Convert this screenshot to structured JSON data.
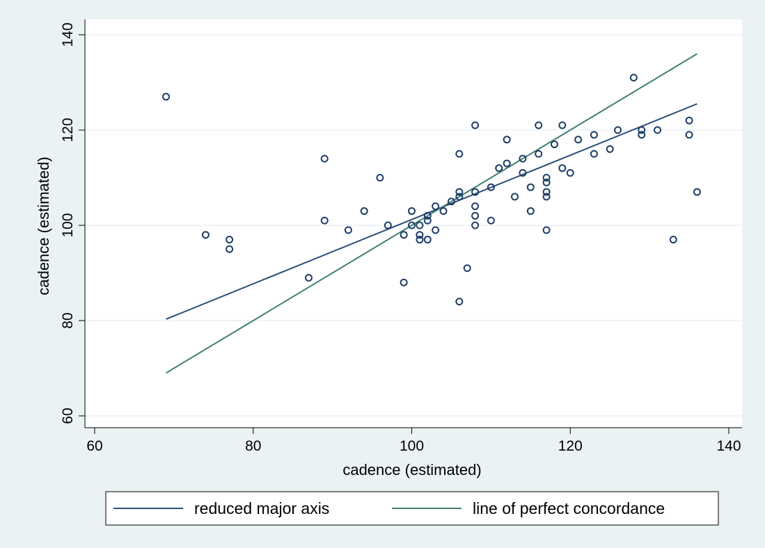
{
  "chart_data": {
    "type": "scatter",
    "xlabel": "cadence (estimated)",
    "ylabel": "cadence (estimated)",
    "xlim": [
      60,
      140
    ],
    "ylim": [
      60,
      140
    ],
    "xticks": [
      60,
      80,
      100,
      120,
      140
    ],
    "yticks": [
      60,
      80,
      100,
      120,
      140
    ],
    "grid": "horizontal",
    "legend_position": "bottom",
    "points": [
      [
        69,
        127
      ],
      [
        74,
        98
      ],
      [
        77,
        97
      ],
      [
        77,
        95
      ],
      [
        87,
        89
      ],
      [
        89,
        114
      ],
      [
        89,
        101
      ],
      [
        92,
        99
      ],
      [
        94,
        103
      ],
      [
        96,
        110
      ],
      [
        97,
        100
      ],
      [
        99,
        88
      ],
      [
        99,
        98
      ],
      [
        100,
        103
      ],
      [
        100,
        100
      ],
      [
        101,
        100
      ],
      [
        101,
        98
      ],
      [
        101,
        97
      ],
      [
        102,
        102
      ],
      [
        102,
        101
      ],
      [
        102,
        97
      ],
      [
        103,
        104
      ],
      [
        103,
        99
      ],
      [
        104,
        103
      ],
      [
        105,
        105
      ],
      [
        106,
        115
      ],
      [
        106,
        107
      ],
      [
        106,
        106
      ],
      [
        106,
        84
      ],
      [
        107,
        91
      ],
      [
        108,
        121
      ],
      [
        108,
        107
      ],
      [
        108,
        104
      ],
      [
        108,
        102
      ],
      [
        108,
        100
      ],
      [
        110,
        108
      ],
      [
        110,
        101
      ],
      [
        111,
        112
      ],
      [
        112,
        118
      ],
      [
        112,
        113
      ],
      [
        113,
        106
      ],
      [
        114,
        114
      ],
      [
        114,
        111
      ],
      [
        115,
        108
      ],
      [
        115,
        103
      ],
      [
        116,
        121
      ],
      [
        116,
        115
      ],
      [
        117,
        110
      ],
      [
        117,
        109
      ],
      [
        117,
        107
      ],
      [
        117,
        106
      ],
      [
        117,
        99
      ],
      [
        118,
        117
      ],
      [
        119,
        121
      ],
      [
        119,
        112
      ],
      [
        120,
        111
      ],
      [
        121,
        118
      ],
      [
        123,
        119
      ],
      [
        123,
        115
      ],
      [
        125,
        116
      ],
      [
        126,
        120
      ],
      [
        128,
        131
      ],
      [
        129,
        120
      ],
      [
        129,
        119
      ],
      [
        131,
        120
      ],
      [
        133,
        97
      ],
      [
        135,
        122
      ],
      [
        135,
        119
      ],
      [
        136,
        107
      ]
    ],
    "lines": [
      {
        "name": "reduced major axis",
        "color": "#2c4d78",
        "x": [
          69,
          136
        ],
        "y": [
          80.3,
          125.5
        ]
      },
      {
        "name": "line of perfect concordance",
        "color": "#3e8070",
        "x": [
          69,
          136
        ],
        "y": [
          69,
          136
        ]
      }
    ],
    "marker_color": "#1e3d68"
  }
}
